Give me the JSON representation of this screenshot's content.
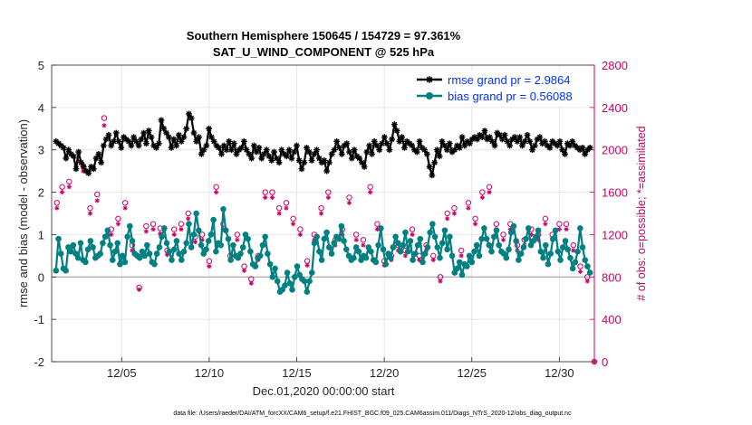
{
  "chart_data": {
    "type": "line",
    "title": "Southern Hemisphere 150645 / 154729 = 97.361%",
    "subtitle": "SAT_U_WIND_COMPONENT @ 525 hPa",
    "xlabel": "Dec.01,2020 00:00:00 start",
    "ylabel": "rmse and bias (model - observation)",
    "ylabel_right": "# of obs: o=possible; *=assimilated",
    "xlim": [
      1,
      32
    ],
    "ylim": [
      -2,
      5
    ],
    "ylim_right": [
      0,
      2800
    ],
    "x_ticks": [
      5,
      10,
      15,
      20,
      25,
      30
    ],
    "x_tick_labels": [
      "12/05",
      "12/10",
      "12/15",
      "12/20",
      "12/25",
      "12/30"
    ],
    "y_ticks": [
      "-2",
      "-1",
      "0",
      "1",
      "2",
      "3",
      "4",
      "5"
    ],
    "y_ticks_right": [
      "0",
      "400",
      "800",
      "1200",
      "1600",
      "2000",
      "2400",
      "2800"
    ],
    "grid": true,
    "legend_position": "top-right",
    "series": [
      {
        "name": "rmse grand pr = 2.9864",
        "color": "#000000",
        "marker": "asterisk",
        "values": [
          3.2,
          3.15,
          3.1,
          3.05,
          2.8,
          3.0,
          2.9,
          2.85,
          2.55,
          2.95,
          2.7,
          2.6,
          2.5,
          2.45,
          2.6,
          2.55,
          2.8,
          2.9,
          2.7,
          3.1,
          3.25,
          3.35,
          3.1,
          3.2,
          3.4,
          3.2,
          3.05,
          3.3,
          3.25,
          3.2,
          3.1,
          3.3,
          3.2,
          3.1,
          3.25,
          3.4,
          3.15,
          3.45,
          3.3,
          3.1,
          3.05,
          3.15,
          3.7,
          3.5,
          3.4,
          3.3,
          3.05,
          3.25,
          3.1,
          3.35,
          3.2,
          3.3,
          3.5,
          3.85,
          3.75,
          3.4,
          3.2,
          3.3,
          2.9,
          3.0,
          3.1,
          3.5,
          3.3,
          3.2,
          3.1,
          3.05,
          2.9,
          3.1,
          3.0,
          3.2,
          3.0,
          3.15,
          2.9,
          3.0,
          3.05,
          3.2,
          3.0,
          2.9,
          2.8,
          3.1,
          2.95,
          3.05,
          2.8,
          2.9,
          3.0,
          2.85,
          2.75,
          2.95,
          2.8,
          2.7,
          3.0,
          2.9,
          2.85,
          3.0,
          2.8,
          2.95,
          3.1,
          2.75,
          2.55,
          2.7,
          3.05,
          2.95,
          2.75,
          2.9,
          3.0,
          2.8,
          2.7,
          2.75,
          2.5,
          2.7,
          2.9,
          3.0,
          3.2,
          3.05,
          2.9,
          3.1,
          3.15,
          2.95,
          2.8,
          3.0,
          2.85,
          2.8,
          2.7,
          2.6,
          2.95,
          3.1,
          2.9,
          3.2,
          3.1,
          3.0,
          3.15,
          3.3,
          3.15,
          3.0,
          3.25,
          3.6,
          3.45,
          3.2,
          3.3,
          3.05,
          3.2,
          3.15,
          3.1,
          3.0,
          2.95,
          3.2,
          3.05,
          3.0,
          2.9,
          2.6,
          2.4,
          2.7,
          3.0,
          2.85,
          3.2,
          3.1,
          3.0,
          3.15,
          2.95,
          3.0,
          3.1,
          3.05,
          3.3,
          3.1,
          3.2,
          3.15,
          3.25,
          3.3,
          3.25,
          3.35,
          3.3,
          3.45,
          3.25,
          3.3,
          3.2,
          3.1,
          3.4,
          3.35,
          3.25,
          3.35,
          3.2,
          3.1,
          3.25,
          3.3,
          3.2,
          3.3,
          3.1,
          3.2,
          3.35,
          3.2,
          3.0,
          3.1,
          3.25,
          3.3,
          3.15,
          3.2,
          3.1,
          3.05,
          3.2,
          3.15,
          3.1,
          3.2,
          3.0,
          2.9,
          3.15,
          3.1,
          3.2,
          3.1,
          3.05,
          3.0,
          3.05,
          2.9,
          3.0,
          3.05
        ]
      },
      {
        "name": "bias grand pr = 0.56088",
        "color": "#008080",
        "marker": "circle",
        "values": [
          0.15,
          0.9,
          0.55,
          0.2,
          0.15,
          0.7,
          0.6,
          0.75,
          0.55,
          0.45,
          0.8,
          0.4,
          0.35,
          0.65,
          0.85,
          0.7,
          0.45,
          0.5,
          0.55,
          0.8,
          0.95,
          1.1,
          0.75,
          0.4,
          0.6,
          0.8,
          0.3,
          0.5,
          0.35,
          0.95,
          1.2,
          0.85,
          0.55,
          0.5,
          0.45,
          0.6,
          0.5,
          0.75,
          0.55,
          0.35,
          0.3,
          0.55,
          0.7,
          0.95,
          1.15,
          0.8,
          0.6,
          0.4,
          0.65,
          0.85,
          0.55,
          0.4,
          0.6,
          0.8,
          1.25,
          0.7,
          1.0,
          1.5,
          1.1,
          0.75,
          0.55,
          0.65,
          0.85,
          1.0,
          1.35,
          0.6,
          0.8,
          0.75,
          1.6,
          1.1,
          0.9,
          0.4,
          0.75,
          0.5,
          0.45,
          0.55,
          0.7,
          1.0,
          0.9,
          0.6,
          0.3,
          0.25,
          0.45,
          0.5,
          0.75,
          0.95,
          0.55,
          0.3,
          0.0,
          0.2,
          -0.1,
          -0.35,
          -0.3,
          -0.2,
          0.1,
          -0.15,
          -0.3,
          0.0,
          0.25,
          0.05,
          -0.05,
          -0.1,
          -0.35,
          -0.1,
          0.1,
          0.8,
          0.95,
          0.6,
          0.4,
          0.9,
          1.05,
          0.7,
          0.55,
          0.8,
          0.95,
          0.9,
          1.2,
          0.85,
          0.65,
          0.5,
          0.4,
          0.45,
          0.7,
          0.6,
          0.4,
          0.5,
          0.45,
          0.7,
          0.6,
          0.4,
          0.35,
          0.75,
          1.15,
          0.65,
          0.3,
          0.55,
          0.45,
          0.7,
          0.95,
          0.8,
          0.6,
          0.75,
          1.05,
          0.6,
          0.85,
          0.4,
          0.55,
          0.75,
          0.9,
          0.35,
          0.55,
          0.7,
          1.05,
          1.25,
          0.95,
          0.7,
          0.45,
          0.8,
          1.1,
          0.65,
          0.95,
          0.5,
          0.1,
          0.2,
          0.35,
          0.05,
          0.3,
          0.25,
          0.5,
          0.35,
          0.6,
          0.75,
          0.5,
          0.9,
          1.15,
          0.9,
          0.75,
          0.6,
          0.95,
          1.1,
          0.75,
          0.6,
          0.55,
          0.45,
          0.65,
          1.05,
          1.2,
          0.85,
          0.4,
          0.55,
          0.7,
          0.9,
          1.15,
          0.75,
          0.85,
          0.95,
          1.1,
          0.6,
          0.45,
          0.75,
          0.3,
          0.55,
          0.9,
          1.1,
          0.6,
          0.4,
          0.7,
          0.85,
          0.65,
          0.45,
          0.2,
          0.35,
          0.6,
          1.15,
          0.7,
          0.4,
          0.25,
          0.1
        ]
      },
      {
        "name": "# of obs possible",
        "axis": "right",
        "color": "#cc0066",
        "marker": "open-circle",
        "x": [
          1.3,
          1.6,
          2.0,
          2.4,
          2.8,
          3.2,
          3.6,
          4.0,
          4.4,
          4.8,
          5.2,
          5.6,
          6.0,
          6.4,
          6.8,
          7.2,
          7.6,
          8.0,
          8.4,
          8.8,
          9.2,
          9.6,
          10.0,
          10.4,
          10.8,
          11.2,
          11.6,
          12.0,
          12.4,
          12.8,
          13.2,
          13.6,
          14.0,
          14.4,
          14.8,
          15.2,
          15.6,
          16.0,
          16.4,
          16.8,
          17.2,
          17.6,
          18.0,
          18.4,
          18.8,
          19.2,
          19.6,
          20.0,
          20.4,
          20.8,
          21.2,
          21.6,
          22.0,
          22.4,
          22.8,
          23.2,
          23.6,
          24.0,
          24.4,
          24.8,
          25.2,
          25.6,
          26.0,
          26.4,
          26.8,
          27.2,
          27.6,
          28.0,
          28.4,
          28.8,
          29.2,
          29.6,
          30.0,
          30.4,
          30.8,
          31.2,
          31.6
        ],
        "values": [
          1500,
          1650,
          1700,
          1900,
          1850,
          1450,
          1580,
          2300,
          1250,
          1350,
          1500,
          1100,
          700,
          1280,
          1300,
          1260,
          1050,
          1250,
          1300,
          1400,
          1180,
          1200,
          950,
          1650,
          1300,
          1000,
          1200,
          900,
          780,
          1000,
          1600,
          1600,
          1450,
          1500,
          1350,
          1250,
          950,
          1200,
          1450,
          1600,
          1150,
          1250,
          1550,
          1200,
          1150,
          1650,
          1300,
          950,
          1000,
          1100,
          1050,
          1250,
          1000,
          1100,
          1000,
          800,
          1400,
          1450,
          1050,
          1500,
          1350,
          1600,
          1650,
          1300,
          1200,
          1300,
          1100,
          1150,
          1250,
          1200,
          1350,
          1200,
          1300,
          1300,
          1100,
          900,
          800
        ]
      },
      {
        "name": "# of obs assimilated",
        "axis": "right",
        "color": "#cc0066",
        "marker": "asterisk",
        "x": [
          1.3,
          1.6,
          2.0,
          2.4,
          2.8,
          3.2,
          3.6,
          4.0,
          4.4,
          4.8,
          5.2,
          5.6,
          6.0,
          6.4,
          6.8,
          7.2,
          7.6,
          8.0,
          8.4,
          8.8,
          9.2,
          9.6,
          10.0,
          10.4,
          10.8,
          11.2,
          11.6,
          12.0,
          12.4,
          12.8,
          13.2,
          13.6,
          14.0,
          14.4,
          14.8,
          15.2,
          15.6,
          16.0,
          16.4,
          16.8,
          17.2,
          17.6,
          18.0,
          18.4,
          18.8,
          19.2,
          19.6,
          20.0,
          20.4,
          20.8,
          21.2,
          21.6,
          22.0,
          22.4,
          22.8,
          23.2,
          23.6,
          24.0,
          24.4,
          24.8,
          25.2,
          25.6,
          26.0,
          26.4,
          26.8,
          27.2,
          27.6,
          28.0,
          28.4,
          28.8,
          29.2,
          29.6,
          30.0,
          30.4,
          30.8,
          31.2,
          31.6
        ],
        "values": [
          1450,
          1600,
          1650,
          1850,
          1800,
          1400,
          1520,
          2230,
          1200,
          1300,
          1450,
          1050,
          680,
          1230,
          1250,
          1210,
          1010,
          1200,
          1250,
          1350,
          1130,
          1150,
          900,
          1600,
          1250,
          960,
          1150,
          860,
          740,
          960,
          1550,
          1550,
          1400,
          1450,
          1300,
          1200,
          910,
          1150,
          1400,
          1550,
          1100,
          1200,
          1500,
          1150,
          1100,
          1600,
          1250,
          910,
          960,
          1050,
          1000,
          1200,
          960,
          1050,
          960,
          760,
          1350,
          1400,
          1000,
          1450,
          1300,
          1550,
          1600,
          1250,
          1150,
          1250,
          1050,
          1100,
          1200,
          1150,
          1300,
          1150,
          1250,
          1250,
          1050,
          850,
          760
        ]
      }
    ],
    "legend": [
      "rmse grand pr = 2.9864",
      "bias grand pr = 0.56088"
    ],
    "footnote": "data file: /Users/raeder/DAI/ATM_forcXX/CAM6_setup/f.e21.FHIST_BGC.f09_025.CAM6assim.011/Diags_NTrS_2020-12/obs_diag_output.nc"
  }
}
